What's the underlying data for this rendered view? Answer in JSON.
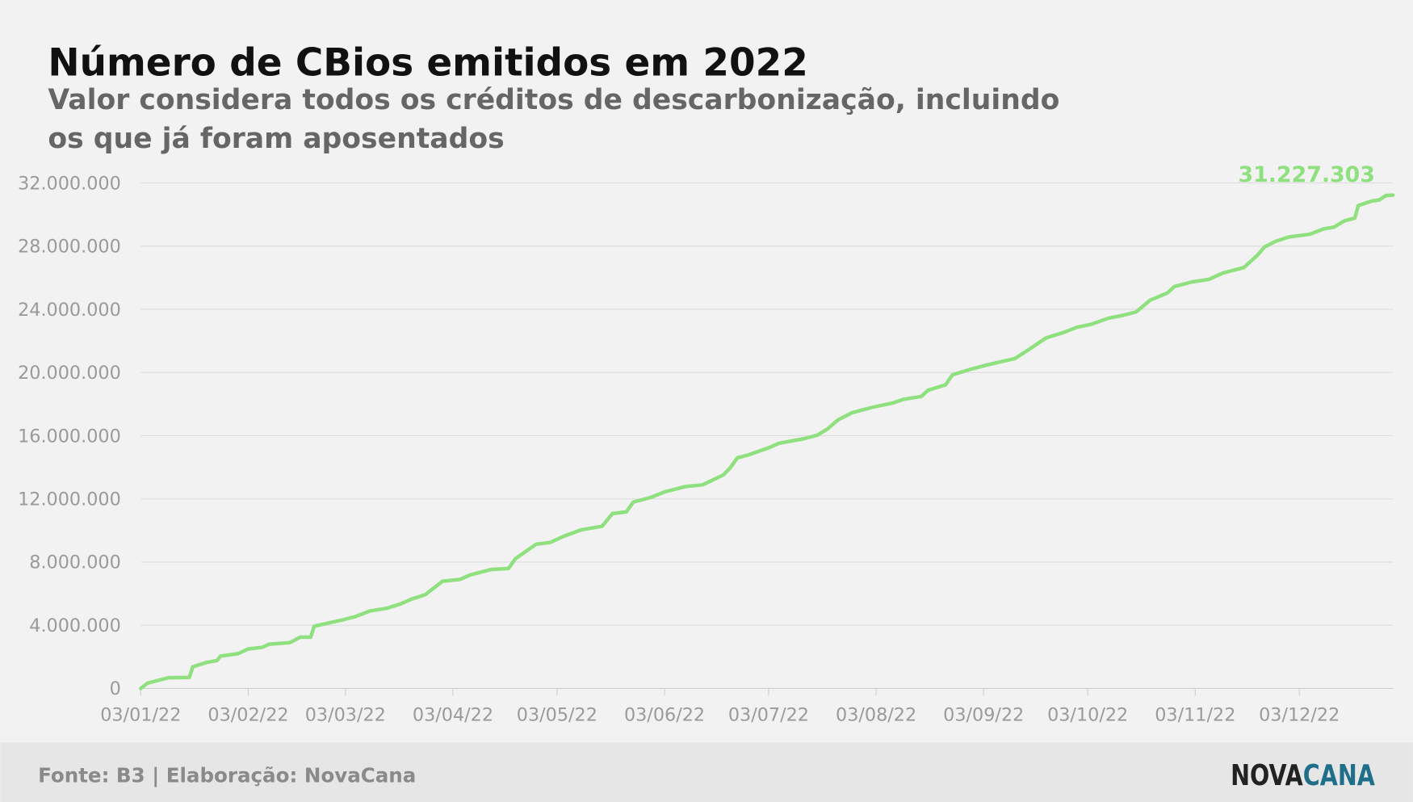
{
  "chart_data": {
    "type": "line",
    "title": "Número de CBios emitidos em 2022",
    "subtitle": "Valor considera todos os créditos de descarbonização, incluindo os que já foram aposentados",
    "source": "Fonte: B3 | Elaboração: NovaCana",
    "logo": [
      "NOVA",
      "CANA"
    ],
    "x": [
      "03/01/22",
      "05/01/22",
      "11/01/22",
      "17/01/22",
      "18/01/22",
      "22/01/22",
      "25/01/22",
      "26/01/22",
      "31/01/22",
      "03/02/22",
      "07/02/22",
      "09/02/22",
      "15/02/22",
      "18/02/22",
      "21/02/22",
      "22/02/22",
      "02/03/22",
      "06/03/22",
      "10/03/22",
      "15/03/22",
      "19/03/22",
      "22/03/22",
      "26/03/22",
      "31/03/22",
      "05/04/22",
      "08/04/22",
      "14/04/22",
      "19/04/22",
      "21/04/22",
      "27/04/22",
      "01/05/22",
      "05/05/22",
      "10/05/22",
      "16/05/22",
      "19/05/22",
      "23/05/22",
      "25/05/22",
      "30/05/22",
      "03/06/22",
      "09/06/22",
      "14/06/22",
      "20/06/22",
      "22/06/22",
      "24/06/22",
      "27/06/22",
      "03/07/22",
      "06/07/22",
      "13/07/22",
      "17/07/22",
      "20/07/22",
      "23/07/22",
      "27/07/22",
      "02/08/22",
      "08/08/22",
      "11/08/22",
      "16/08/22",
      "18/08/22",
      "23/08/22",
      "25/08/22",
      "30/08/22",
      "04/09/22",
      "12/09/22",
      "16/09/22",
      "21/09/22",
      "26/09/22",
      "30/09/22",
      "04/10/22",
      "09/10/22",
      "13/10/22",
      "17/10/22",
      "21/10/22",
      "26/10/22",
      "28/10/22",
      "02/11/22",
      "07/11/22",
      "11/11/22",
      "17/11/22",
      "19/11/22",
      "21/11/22",
      "23/11/22",
      "26/11/22",
      "30/11/22",
      "06/12/22",
      "10/12/22",
      "13/12/22",
      "16/12/22",
      "19/12/22",
      "20/12/22",
      "24/12/22",
      "26/12/22",
      "28/12/22",
      "30/12/22"
    ],
    "series": [
      {
        "name": "CBios emitidos",
        "color": "#8fe07e",
        "values": [
          0,
          340000,
          680000,
          700000,
          1370000,
          1650000,
          1770000,
          2050000,
          2200000,
          2500000,
          2600000,
          2800000,
          2900000,
          3250000,
          3250000,
          3940000,
          4330000,
          4560000,
          4900000,
          5080000,
          5360000,
          5650000,
          5930000,
          6790000,
          6900000,
          7190000,
          7530000,
          7590000,
          8210000,
          9130000,
          9240000,
          9640000,
          10040000,
          10270000,
          11070000,
          11180000,
          11800000,
          12090000,
          12440000,
          12780000,
          12890000,
          13520000,
          13980000,
          14600000,
          14770000,
          15230000,
          15520000,
          15800000,
          16030000,
          16430000,
          17000000,
          17450000,
          17800000,
          18080000,
          18310000,
          18480000,
          18880000,
          19220000,
          19850000,
          20190000,
          20480000,
          20880000,
          21450000,
          22190000,
          22530000,
          22870000,
          23050000,
          23440000,
          23610000,
          23840000,
          24580000,
          25040000,
          25440000,
          25730000,
          25900000,
          26300000,
          26640000,
          27040000,
          27440000,
          27950000,
          28290000,
          28580000,
          28750000,
          29090000,
          29200000,
          29600000,
          29780000,
          30570000,
          30860000,
          30920000,
          31200000,
          31227303
        ]
      }
    ],
    "annotations": [
      {
        "x": "30/12/22",
        "y": 31227303,
        "label": "31.227.303"
      }
    ],
    "xlim": [
      "03/01/22",
      "30/12/22"
    ],
    "xticks": [
      "03/01/22",
      "03/02/22",
      "03/03/22",
      "03/04/22",
      "03/05/22",
      "03/06/22",
      "03/07/22",
      "03/08/22",
      "03/09/22",
      "03/10/22",
      "03/11/22",
      "03/12/22"
    ],
    "ylim": [
      0,
      32000000
    ],
    "yticks": [
      0,
      {
        "value": 4000000,
        "label": "4.000.000"
      },
      {
        "value": 8000000,
        "label": "8.000.000"
      },
      {
        "value": 12000000,
        "label": "12.000.000"
      },
      {
        "value": 16000000,
        "label": "16.000.000"
      },
      {
        "value": 20000000,
        "label": "20.000.000"
      },
      {
        "value": 24000000,
        "label": "24.000.000"
      },
      {
        "value": 28000000,
        "label": "28.000.000"
      },
      {
        "value": 32000000,
        "label": "32.000.000"
      }
    ],
    "grid": true
  }
}
